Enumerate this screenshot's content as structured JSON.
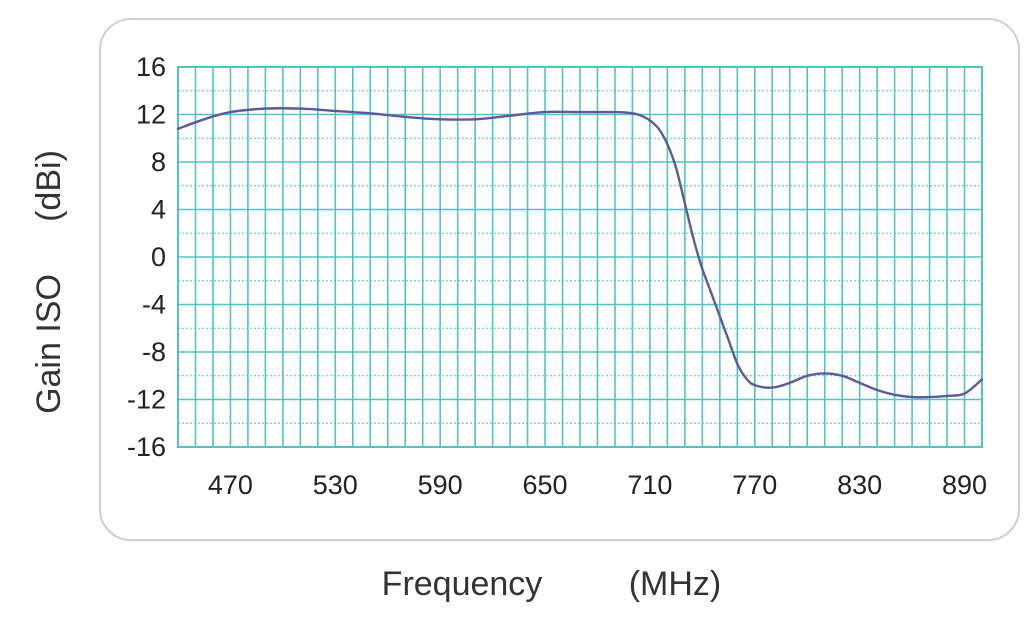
{
  "chart_data": {
    "type": "line",
    "xlabel": "Frequency",
    "xunit": "(MHz)",
    "ylabel": "Gain ISO",
    "yunit": "(dBi)",
    "xlim": [
      440,
      900
    ],
    "ylim": [
      -16,
      16
    ],
    "x_ticks": [
      "470",
      "530",
      "590",
      "650",
      "710",
      "770",
      "830",
      "890"
    ],
    "y_ticks": [
      "16",
      "12",
      "8",
      "4",
      "0",
      "-4",
      "-8",
      "-12",
      "-16"
    ],
    "grid": true,
    "colors": {
      "line": "#5a5a9c",
      "grid": "#4fc4c2",
      "frame": "#cfcfcf",
      "text": "#222222"
    },
    "series": [
      {
        "x": [
          440,
          455,
          470,
          490,
          510,
          530,
          550,
          570,
          590,
          610,
          630,
          650,
          670,
          690,
          700,
          705,
          710,
          715,
          720,
          725,
          730,
          735,
          740,
          745,
          750,
          755,
          760,
          765,
          770,
          780,
          790,
          800,
          810,
          820,
          830,
          840,
          850,
          860,
          870,
          880,
          890,
          900
        ],
        "y": [
          10.8,
          11.6,
          12.2,
          12.5,
          12.5,
          12.3,
          12.1,
          11.8,
          11.6,
          11.6,
          11.9,
          12.2,
          12.2,
          12.2,
          12.1,
          11.9,
          11.5,
          10.8,
          9.5,
          7.5,
          4.5,
          1.5,
          -1.0,
          -3.0,
          -5.0,
          -7.0,
          -9.0,
          -10.2,
          -10.8,
          -11.0,
          -10.6,
          -10.0,
          -9.8,
          -10.0,
          -10.6,
          -11.2,
          -11.6,
          -11.8,
          -11.8,
          -11.7,
          -11.5,
          -10.3
        ]
      }
    ]
  }
}
